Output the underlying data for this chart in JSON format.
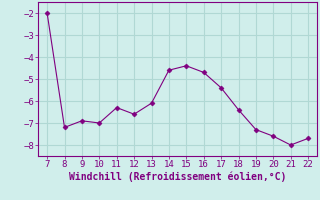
{
  "x": [
    7,
    8,
    9,
    10,
    11,
    12,
    13,
    14,
    15,
    16,
    17,
    18,
    19,
    20,
    21,
    22
  ],
  "y": [
    -2.0,
    -7.2,
    -6.9,
    -7.0,
    -6.3,
    -6.6,
    -6.1,
    -4.6,
    -4.4,
    -4.7,
    -5.4,
    -6.4,
    -7.3,
    -7.6,
    -8.0,
    -7.7
  ],
  "line_color": "#800080",
  "marker": "D",
  "marker_size": 2.5,
  "bg_color": "#d0eeeb",
  "grid_color": "#b0d8d4",
  "xlabel": "Windchill (Refroidissement éolien,°C)",
  "xlabel_color": "#800080",
  "tick_color": "#800080",
  "spine_color": "#800080",
  "ylim": [
    -8.5,
    -1.5
  ],
  "xlim": [
    6.5,
    22.5
  ],
  "yticks": [
    -2,
    -3,
    -4,
    -5,
    -6,
    -7,
    -8
  ],
  "xticks": [
    7,
    8,
    9,
    10,
    11,
    12,
    13,
    14,
    15,
    16,
    17,
    18,
    19,
    20,
    21,
    22
  ],
  "tick_fontsize": 6.5,
  "xlabel_fontsize": 7
}
